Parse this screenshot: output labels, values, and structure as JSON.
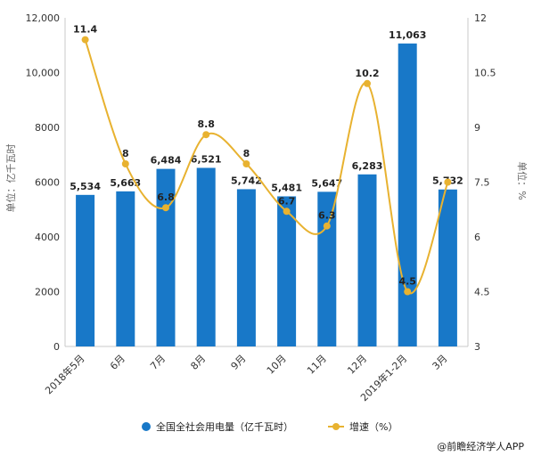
{
  "chart_data": {
    "type": "bar",
    "categories": [
      "2018年5月",
      "6月",
      "7月",
      "8月",
      "9月",
      "10月",
      "11月",
      "12月",
      "2019年1-2月",
      "3月"
    ],
    "series": [
      {
        "name": "全国全社会用电量（亿千瓦时）",
        "type": "bar",
        "axis": "left",
        "values": [
          5534,
          5663,
          6484,
          6521,
          5742,
          5481,
          5647,
          6283,
          11063,
          5732
        ],
        "labels": [
          "5,534",
          "5,663",
          "6,484",
          "6,521",
          "5,742",
          "5,481",
          "5,647",
          "6,283",
          "11,063",
          "5,732"
        ]
      },
      {
        "name": "增速（%）",
        "type": "line",
        "axis": "right",
        "values": [
          11.4,
          8,
          6.8,
          8.8,
          8,
          6.7,
          6.3,
          10.2,
          4.5,
          7.5
        ],
        "labels": [
          "11.4",
          "8",
          "6.8",
          "8.8",
          "8",
          "6.7",
          "6.3",
          "10.2",
          "4.5",
          ""
        ]
      }
    ],
    "ylabel_left": "单位：亿千瓦时",
    "ylabel_right": "单位：%",
    "ylim_left": [
      0,
      12000
    ],
    "yticks_left": [
      "0",
      "2000",
      "4000",
      "6000",
      "8000",
      "10,000",
      "12,000"
    ],
    "ylim_right": [
      3,
      12
    ],
    "yticks_right": [
      "3",
      "4.5",
      "6",
      "7.5",
      "9",
      "10.5",
      "12"
    ],
    "grid": false,
    "legend_position": "bottom",
    "colors": {
      "bar": "#1878c8",
      "line": "#e8b230"
    }
  },
  "footer": {
    "source": "@前瞻经济学人APP"
  }
}
